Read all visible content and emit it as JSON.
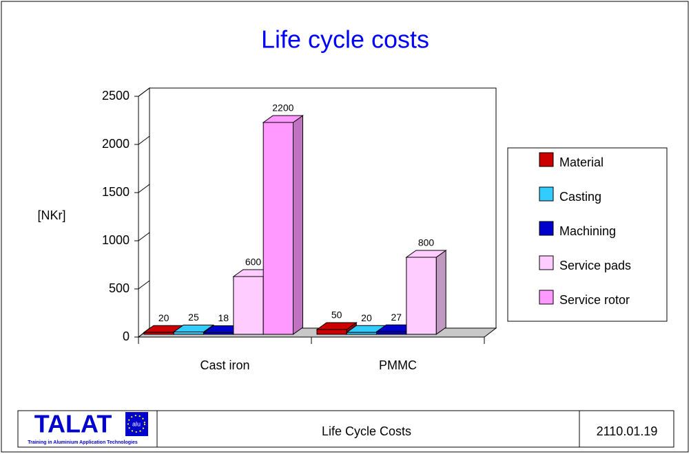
{
  "chart_data": {
    "type": "bar3d",
    "title": "Life cycle costs",
    "y_label": "[NKr]",
    "categories": [
      "Cast iron",
      "PMMC"
    ],
    "series": [
      {
        "name": "Material",
        "color": "#cc0000",
        "values": [
          20,
          50
        ]
      },
      {
        "name": "Casting",
        "color": "#33ccff",
        "values": [
          25,
          20
        ]
      },
      {
        "name": "Machining",
        "color": "#0000cc",
        "values": [
          18,
          27
        ]
      },
      {
        "name": "Service pads",
        "color": "#ffccff",
        "values": [
          600,
          800
        ]
      },
      {
        "name": "Service rotor",
        "color": "#ff99ff",
        "values": [
          2200,
          null
        ]
      }
    ],
    "ylim": [
      0,
      2500
    ],
    "yticks": [
      0,
      500,
      1000,
      1500,
      2000,
      2500
    ],
    "grid": false,
    "legend": "right"
  },
  "footer": {
    "logo": "TALAT",
    "logo_badge": "alu",
    "logo_subtitle": "Training in Aluminium Application Technologies",
    "title": "Life Cycle Costs",
    "code": "2110.01.19"
  }
}
